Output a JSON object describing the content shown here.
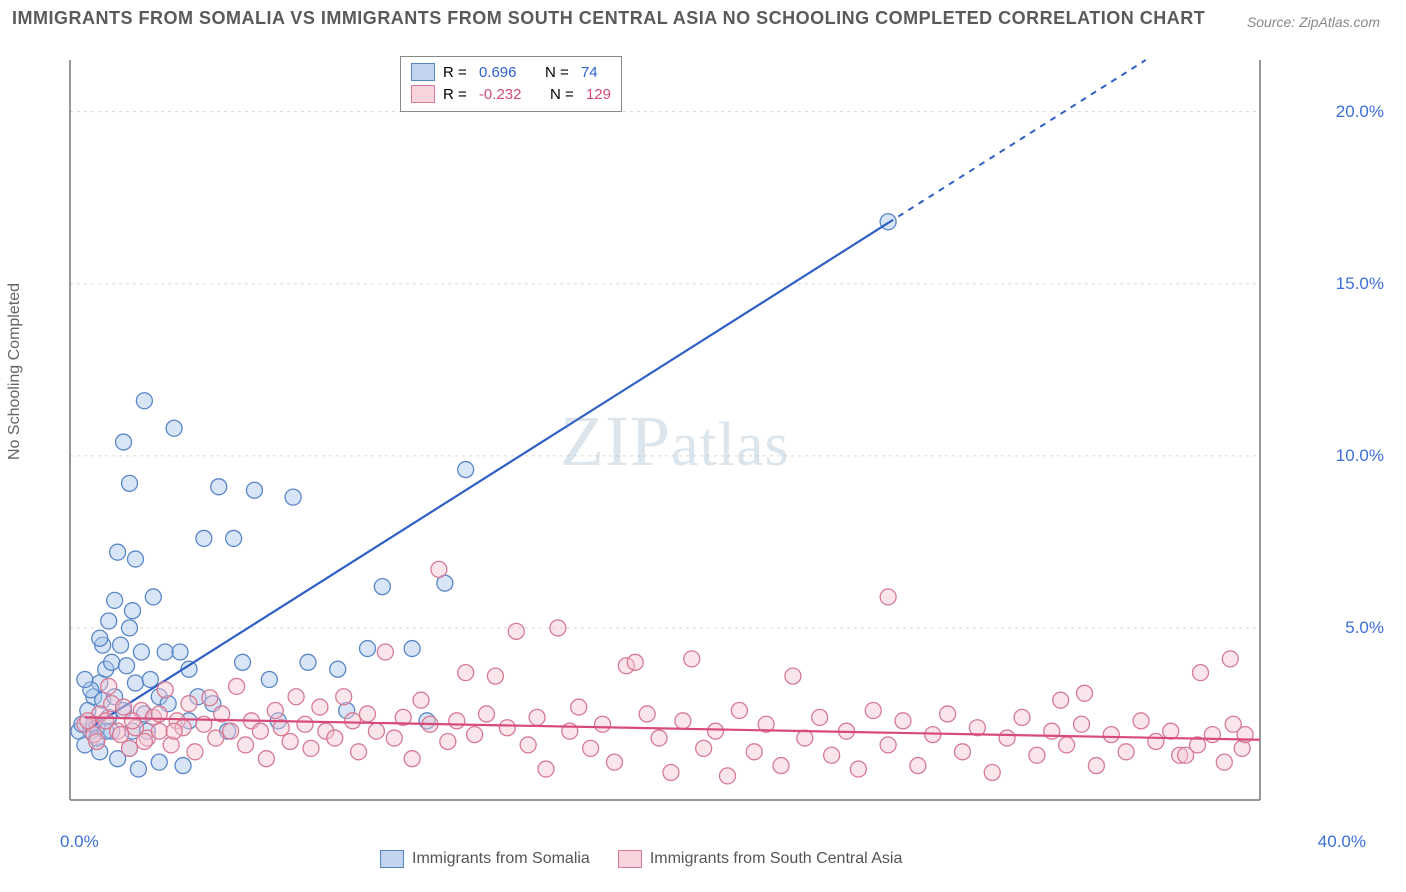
{
  "title": "IMMIGRANTS FROM SOMALIA VS IMMIGRANTS FROM SOUTH CENTRAL ASIA NO SCHOOLING COMPLETED CORRELATION CHART",
  "source": "Source: ZipAtlas.com",
  "watermark": "ZIPatlas",
  "y_axis_label": "No Schooling Completed",
  "chart": {
    "type": "scatter-correlation",
    "xlim": [
      0,
      40
    ],
    "ylim": [
      0,
      21.5
    ],
    "x_unit": "%",
    "y_unit": "%",
    "x_ticks": [
      0,
      40
    ],
    "y_ticks": [
      5,
      10,
      15,
      20
    ],
    "grid_color": "#d8d8d8",
    "axis_color": "#777",
    "background_color": "#ffffff",
    "marker_radius": 8,
    "marker_opacity": 0.45,
    "series": [
      {
        "name": "Immigrants from Somalia",
        "color_fill": "#a8c5ea",
        "color_stroke": "#5a86c8",
        "line_color": "#2f5fc4",
        "trend": {
          "x1": 0.5,
          "y1": 2.0,
          "x2": 40,
          "y2": 23.6,
          "solid_until_x": 27.5
        },
        "R": 0.696,
        "N": 74,
        "points": [
          [
            0.3,
            2.0
          ],
          [
            0.4,
            2.2
          ],
          [
            0.5,
            1.6
          ],
          [
            0.6,
            2.6
          ],
          [
            0.7,
            2.0
          ],
          [
            0.8,
            3.0
          ],
          [
            0.8,
            2.2
          ],
          [
            0.9,
            2.1
          ],
          [
            1.0,
            3.4
          ],
          [
            1.0,
            1.4
          ],
          [
            1.1,
            2.9
          ],
          [
            1.1,
            4.5
          ],
          [
            1.2,
            3.8
          ],
          [
            1.3,
            2.4
          ],
          [
            1.3,
            5.2
          ],
          [
            1.4,
            2.0
          ],
          [
            1.4,
            4.0
          ],
          [
            1.5,
            5.8
          ],
          [
            1.5,
            3.0
          ],
          [
            1.6,
            1.2
          ],
          [
            1.6,
            7.2
          ],
          [
            1.7,
            4.5
          ],
          [
            1.8,
            2.6
          ],
          [
            1.8,
            10.4
          ],
          [
            1.9,
            3.9
          ],
          [
            2.0,
            5.0
          ],
          [
            2.0,
            9.2
          ],
          [
            2.1,
            2.0
          ],
          [
            2.2,
            3.4
          ],
          [
            2.2,
            7.0
          ],
          [
            2.3,
            0.9
          ],
          [
            2.4,
            4.3
          ],
          [
            2.5,
            2.5
          ],
          [
            2.5,
            11.6
          ],
          [
            2.7,
            3.5
          ],
          [
            2.8,
            5.9
          ],
          [
            3.0,
            1.1
          ],
          [
            3.0,
            3.0
          ],
          [
            3.2,
            4.3
          ],
          [
            3.3,
            2.8
          ],
          [
            3.5,
            10.8
          ],
          [
            3.7,
            4.3
          ],
          [
            3.8,
            1.0
          ],
          [
            4.0,
            2.3
          ],
          [
            4.0,
            3.8
          ],
          [
            4.3,
            3.0
          ],
          [
            4.5,
            7.6
          ],
          [
            4.8,
            2.8
          ],
          [
            5.0,
            9.1
          ],
          [
            5.3,
            2.0
          ],
          [
            5.5,
            7.6
          ],
          [
            5.8,
            4.0
          ],
          [
            6.2,
            9.0
          ],
          [
            6.7,
            3.5
          ],
          [
            7.0,
            2.3
          ],
          [
            7.5,
            8.8
          ],
          [
            8.0,
            4.0
          ],
          [
            9.0,
            3.8
          ],
          [
            9.3,
            2.6
          ],
          [
            10.0,
            4.4
          ],
          [
            10.5,
            6.2
          ],
          [
            11.5,
            4.4
          ],
          [
            12.0,
            2.3
          ],
          [
            12.6,
            6.3
          ],
          [
            13.3,
            9.6
          ],
          [
            27.5,
            16.8
          ],
          [
            1.0,
            4.7
          ],
          [
            0.7,
            3.2
          ],
          [
            0.9,
            1.8
          ],
          [
            1.2,
            2.0
          ],
          [
            2.0,
            1.5
          ],
          [
            2.6,
            2.0
          ],
          [
            0.5,
            3.5
          ],
          [
            2.1,
            5.5
          ]
        ]
      },
      {
        "name": "Immigrants from South Central Asia",
        "color_fill": "#f5c5d2",
        "color_stroke": "#d67a95",
        "line_color": "#d84a7a",
        "trend": {
          "x1": 0.5,
          "y1": 2.4,
          "x2": 40,
          "y2": 1.75,
          "solid_until_x": 40
        },
        "R": -0.232,
        "N": 129,
        "points": [
          [
            0.5,
            2.2
          ],
          [
            0.8,
            1.9
          ],
          [
            1.0,
            2.5
          ],
          [
            1.2,
            2.3
          ],
          [
            1.4,
            2.8
          ],
          [
            1.6,
            2.0
          ],
          [
            1.8,
            2.7
          ],
          [
            2.0,
            1.5
          ],
          [
            2.2,
            2.1
          ],
          [
            2.4,
            2.6
          ],
          [
            2.6,
            1.8
          ],
          [
            2.8,
            2.4
          ],
          [
            3.0,
            2.0
          ],
          [
            3.2,
            3.2
          ],
          [
            3.4,
            1.6
          ],
          [
            3.6,
            2.3
          ],
          [
            3.8,
            2.1
          ],
          [
            4.0,
            2.8
          ],
          [
            4.2,
            1.4
          ],
          [
            4.5,
            2.2
          ],
          [
            4.7,
            2.97
          ],
          [
            4.9,
            1.8
          ],
          [
            5.1,
            2.5
          ],
          [
            5.4,
            2.0
          ],
          [
            5.6,
            3.3
          ],
          [
            5.9,
            1.6
          ],
          [
            6.1,
            2.3
          ],
          [
            6.4,
            2.0
          ],
          [
            6.6,
            1.2
          ],
          [
            6.9,
            2.6
          ],
          [
            7.1,
            2.1
          ],
          [
            7.4,
            1.7
          ],
          [
            7.6,
            3.0
          ],
          [
            7.9,
            2.2
          ],
          [
            8.1,
            1.5
          ],
          [
            8.4,
            2.7
          ],
          [
            8.6,
            2.0
          ],
          [
            8.9,
            1.8
          ],
          [
            9.2,
            3.0
          ],
          [
            9.5,
            2.3
          ],
          [
            9.7,
            1.4
          ],
          [
            10.0,
            2.5
          ],
          [
            10.3,
            2.0
          ],
          [
            10.6,
            4.3
          ],
          [
            10.9,
            1.8
          ],
          [
            11.2,
            2.4
          ],
          [
            11.5,
            1.2
          ],
          [
            11.8,
            2.9
          ],
          [
            12.1,
            2.2
          ],
          [
            12.4,
            6.7
          ],
          [
            12.7,
            1.7
          ],
          [
            13.0,
            2.3
          ],
          [
            13.3,
            3.7
          ],
          [
            13.6,
            1.9
          ],
          [
            14.0,
            2.5
          ],
          [
            14.3,
            3.6
          ],
          [
            14.7,
            2.1
          ],
          [
            15.0,
            4.9
          ],
          [
            15.4,
            1.6
          ],
          [
            15.7,
            2.4
          ],
          [
            16.0,
            0.9
          ],
          [
            16.4,
            5.0
          ],
          [
            16.8,
            2.0
          ],
          [
            17.1,
            2.7
          ],
          [
            17.5,
            1.5
          ],
          [
            17.9,
            2.2
          ],
          [
            18.3,
            1.1
          ],
          [
            18.7,
            3.9
          ],
          [
            19.0,
            4.0
          ],
          [
            19.4,
            2.5
          ],
          [
            19.8,
            1.8
          ],
          [
            20.2,
            0.8
          ],
          [
            20.6,
            2.3
          ],
          [
            20.9,
            4.1
          ],
          [
            21.3,
            1.5
          ],
          [
            21.7,
            2.0
          ],
          [
            22.1,
            0.7
          ],
          [
            22.5,
            2.6
          ],
          [
            23.0,
            1.4
          ],
          [
            23.4,
            2.2
          ],
          [
            23.9,
            1.0
          ],
          [
            24.3,
            3.6
          ],
          [
            24.7,
            1.8
          ],
          [
            25.2,
            2.4
          ],
          [
            25.6,
            1.3
          ],
          [
            26.1,
            2.0
          ],
          [
            26.5,
            0.9
          ],
          [
            27.0,
            2.6
          ],
          [
            27.5,
            1.6
          ],
          [
            27.5,
            5.9
          ],
          [
            28.0,
            2.3
          ],
          [
            28.5,
            1.0
          ],
          [
            29.0,
            1.9
          ],
          [
            29.5,
            2.5
          ],
          [
            30.0,
            1.4
          ],
          [
            30.5,
            2.1
          ],
          [
            31.0,
            0.8
          ],
          [
            31.5,
            1.8
          ],
          [
            32.0,
            2.4
          ],
          [
            32.5,
            1.3
          ],
          [
            33.0,
            2.0
          ],
          [
            33.3,
            2.9
          ],
          [
            33.5,
            1.6
          ],
          [
            34.0,
            2.2
          ],
          [
            34.1,
            3.1
          ],
          [
            34.5,
            1.0
          ],
          [
            35.0,
            1.9
          ],
          [
            35.5,
            1.4
          ],
          [
            36.0,
            2.3
          ],
          [
            36.5,
            1.7
          ],
          [
            37.0,
            2.0
          ],
          [
            37.3,
            1.3
          ],
          [
            37.5,
            1.3
          ],
          [
            37.9,
            1.6
          ],
          [
            38.0,
            3.7
          ],
          [
            38.4,
            1.9
          ],
          [
            38.8,
            1.1
          ],
          [
            39.0,
            4.1
          ],
          [
            39.1,
            2.2
          ],
          [
            39.4,
            1.5
          ],
          [
            39.5,
            1.9
          ],
          [
            0.6,
            2.3
          ],
          [
            0.9,
            1.7
          ],
          [
            1.3,
            3.3
          ],
          [
            1.7,
            1.9
          ],
          [
            2.1,
            2.3
          ],
          [
            2.5,
            1.7
          ],
          [
            3.0,
            2.5
          ],
          [
            3.5,
            2.0
          ]
        ]
      }
    ]
  },
  "legend_top": {
    "rows": [
      {
        "sw": "blue",
        "r_label": "R = ",
        "r_val": "0.696",
        "n_label": "N = ",
        "n_val": "74",
        "val_class": "stat-b"
      },
      {
        "sw": "pink",
        "r_label": "R = ",
        "r_val": "-0.232",
        "n_label": "N = ",
        "n_val": "129",
        "val_class": "stat-p"
      }
    ]
  },
  "legend_bottom": [
    {
      "sw": "blue",
      "text": "Immigrants from Somalia"
    },
    {
      "sw": "pink",
      "text": "Immigrants from South Central Asia"
    }
  ]
}
